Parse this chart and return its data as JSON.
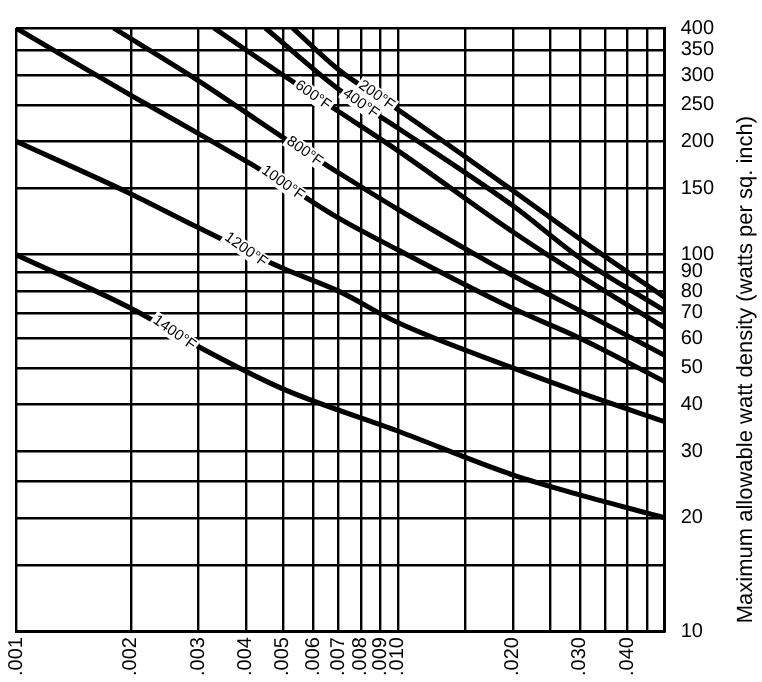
{
  "chart_data": {
    "type": "line",
    "ylabel": "Maximum allowable watt density (watts per sq. inch)",
    "log": "xy",
    "grid": true,
    "legend": false,
    "marker": "none",
    "line_style": "solid",
    "xlim": [
      0.001,
      0.05
    ],
    "ylim": [
      10,
      400
    ],
    "xticks": [
      {
        "value": 0.001,
        "label": ".001"
      },
      {
        "value": 0.002,
        "label": ".002"
      },
      {
        "value": 0.003,
        "label": ".003"
      },
      {
        "value": 0.004,
        "label": ".004"
      },
      {
        "value": 0.005,
        "label": ".005"
      },
      {
        "value": 0.006,
        "label": ".006"
      },
      {
        "value": 0.007,
        "label": ".007"
      },
      {
        "value": 0.008,
        "label": ".008"
      },
      {
        "value": 0.009,
        "label": ".009"
      },
      {
        "value": 0.01,
        "label": ".010"
      },
      {
        "value": 0.015,
        "label": null
      },
      {
        "value": 0.02,
        "label": ".020"
      },
      {
        "value": 0.025,
        "label": null
      },
      {
        "value": 0.03,
        "label": ".030"
      },
      {
        "value": 0.035,
        "label": null
      },
      {
        "value": 0.04,
        "label": ".040"
      },
      {
        "value": 0.045,
        "label": null
      }
    ],
    "yticks": [
      10,
      {
        "value": 15,
        "label": null
      },
      20,
      {
        "value": 25,
        "label": null
      },
      30,
      40,
      50,
      60,
      70,
      80,
      90,
      100,
      150,
      200,
      250,
      300,
      350,
      400
    ],
    "series": [
      {
        "color": "#000000",
        "x": [
          0.001,
          0.002,
          0.003,
          0.005,
          0.01,
          0.02,
          0.03,
          0.05
        ],
        "values": [
          100,
          72,
          57,
          44,
          34,
          26,
          23,
          20
        ]
      },
      {
        "color": "#000000",
        "x": [
          0.001,
          0.002,
          0.003,
          0.005,
          0.007,
          0.01,
          0.02,
          0.03,
          0.05
        ],
        "values": [
          200,
          145,
          118,
          92,
          80,
          66,
          50,
          43,
          36
        ]
      },
      {
        "color": "#000000",
        "x": [
          0.001,
          0.002,
          0.003,
          0.005,
          0.007,
          0.01,
          0.02,
          0.03,
          0.05
        ],
        "values": [
          400,
          265,
          210,
          155,
          125,
          103,
          72,
          60,
          46
        ]
      },
      {
        "color": "#000000",
        "x": [
          0.0018,
          0.003,
          0.005,
          0.007,
          0.01,
          0.02,
          0.03,
          0.05
        ],
        "values": [
          400,
          290,
          205,
          165,
          132,
          88,
          71,
          54
        ]
      },
      {
        "color": "#000000",
        "x": [
          0.0033,
          0.005,
          0.007,
          0.01,
          0.02,
          0.03,
          0.05
        ],
        "values": [
          400,
          300,
          240,
          189,
          115,
          88,
          64
        ]
      },
      {
        "color": "#000000",
        "x": [
          0.0045,
          0.007,
          0.01,
          0.02,
          0.03,
          0.05
        ],
        "values": [
          400,
          275,
          217,
          135,
          98,
          71
        ]
      },
      {
        "color": "#000000",
        "x": [
          0.0053,
          0.007,
          0.01,
          0.02,
          0.03,
          0.05
        ],
        "values": [
          400,
          310,
          243,
          148,
          110,
          77
        ]
      }
    ],
    "annotations": [
      {
        "text": "1400°F",
        "x": 0.0026,
        "y": 62
      },
      {
        "text": "1200°F",
        "x": 0.004,
        "y": 103
      },
      {
        "text": "1000°F",
        "x": 0.005,
        "y": 155
      },
      {
        "text": "800°F",
        "x": 0.0057,
        "y": 188
      },
      {
        "text": "600°F",
        "x": 0.006,
        "y": 265
      },
      {
        "text": "400°F",
        "x": 0.008,
        "y": 252
      },
      {
        "text": "200°F",
        "x": 0.0088,
        "y": 265
      }
    ]
  }
}
